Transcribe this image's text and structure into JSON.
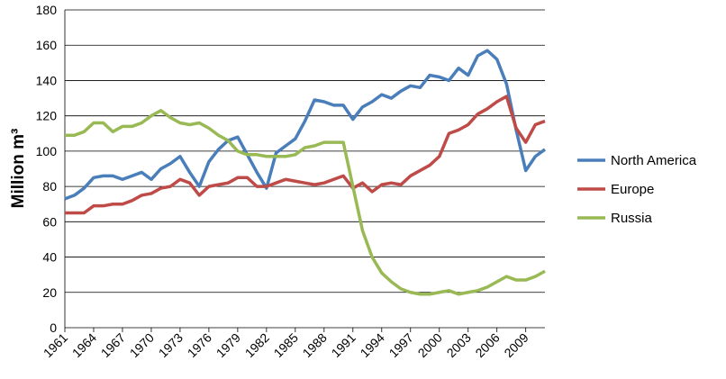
{
  "chart_data": {
    "type": "line",
    "y_label": "Million m³",
    "x": [
      1961,
      1962,
      1963,
      1964,
      1965,
      1966,
      1967,
      1968,
      1969,
      1970,
      1971,
      1972,
      1973,
      1974,
      1975,
      1976,
      1977,
      1978,
      1979,
      1980,
      1981,
      1982,
      1983,
      1984,
      1985,
      1986,
      1987,
      1988,
      1989,
      1990,
      1991,
      1992,
      1993,
      1994,
      1995,
      1996,
      1997,
      1998,
      1999,
      2000,
      2001,
      2002,
      2003,
      2004,
      2005,
      2006,
      2007,
      2008,
      2009,
      2010,
      2011
    ],
    "xlim": [
      1961,
      2011
    ],
    "xticks": [
      1961,
      1964,
      1967,
      1970,
      1973,
      1976,
      1979,
      1982,
      1985,
      1988,
      1991,
      1994,
      1997,
      2000,
      2003,
      2006,
      2009
    ],
    "ylim": [
      0,
      180
    ],
    "yticks": [
      0,
      20,
      40,
      60,
      80,
      100,
      120,
      140,
      160,
      180
    ],
    "grid": true,
    "legend": "right",
    "series": [
      {
        "name": "North America",
        "color": "#4a7ebb",
        "values": [
          73,
          75,
          79,
          85,
          86,
          86,
          84,
          86,
          88,
          84,
          90,
          93,
          97,
          88,
          80,
          94,
          101,
          106,
          108,
          98,
          88,
          79,
          99,
          103,
          107,
          117,
          129,
          128,
          126,
          126,
          118,
          125,
          128,
          132,
          130,
          134,
          137,
          136,
          143,
          142,
          140,
          147,
          143,
          154,
          157,
          152,
          138,
          112,
          89,
          97,
          101
        ]
      },
      {
        "name": "Europe",
        "color": "#be4b48",
        "values": [
          65,
          65,
          65,
          69,
          69,
          70,
          70,
          72,
          75,
          76,
          79,
          80,
          84,
          82,
          75,
          80,
          81,
          82,
          85,
          85,
          80,
          80,
          82,
          84,
          83,
          82,
          81,
          82,
          84,
          86,
          79,
          82,
          77,
          81,
          82,
          81,
          86,
          89,
          92,
          97,
          110,
          112,
          115,
          121,
          124,
          128,
          131,
          113,
          105,
          115,
          117
        ]
      },
      {
        "name": "Russia",
        "color": "#98b954",
        "values": [
          109,
          109,
          111,
          116,
          116,
          111,
          114,
          114,
          116,
          120,
          123,
          119,
          116,
          115,
          116,
          113,
          109,
          106,
          100,
          98,
          98,
          97,
          97,
          97,
          98,
          102,
          103,
          105,
          105,
          105,
          80,
          55,
          40,
          31,
          26,
          22,
          20,
          19,
          19,
          20,
          21,
          19,
          20,
          21,
          23,
          26,
          29,
          27,
          27,
          29,
          32
        ]
      }
    ]
  }
}
